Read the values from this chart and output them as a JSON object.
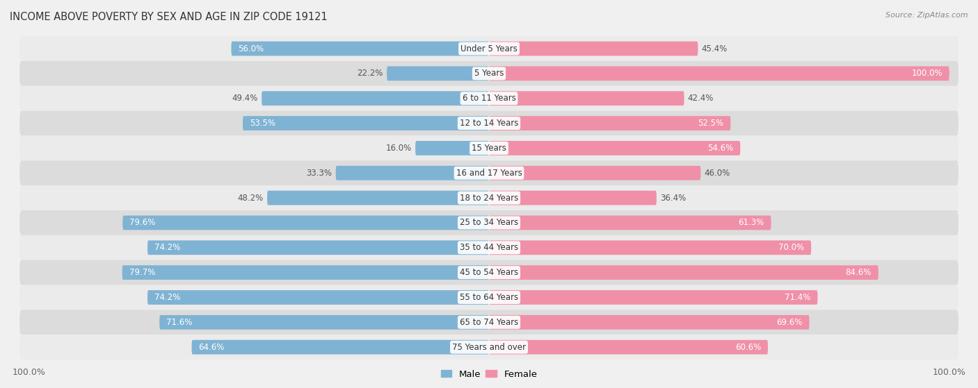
{
  "title": "INCOME ABOVE POVERTY BY SEX AND AGE IN ZIP CODE 19121",
  "source": "Source: ZipAtlas.com",
  "categories": [
    "Under 5 Years",
    "5 Years",
    "6 to 11 Years",
    "12 to 14 Years",
    "15 Years",
    "16 and 17 Years",
    "18 to 24 Years",
    "25 to 34 Years",
    "35 to 44 Years",
    "45 to 54 Years",
    "55 to 64 Years",
    "65 to 74 Years",
    "75 Years and over"
  ],
  "male_values": [
    56.0,
    22.2,
    49.4,
    53.5,
    16.0,
    33.3,
    48.2,
    79.6,
    74.2,
    79.7,
    74.2,
    71.6,
    64.6
  ],
  "female_values": [
    45.4,
    100.0,
    42.4,
    52.5,
    54.6,
    46.0,
    36.4,
    61.3,
    70.0,
    84.6,
    71.4,
    69.6,
    60.6
  ],
  "male_color": "#7fb3d3",
  "female_color": "#f090a8",
  "male_label": "Male",
  "female_label": "Female",
  "row_color_light": "#ebebeb",
  "row_color_dark": "#dcdcdc",
  "bg_color": "#f0f0f0",
  "max_value": 100.0,
  "label_fontsize": 8.5,
  "title_fontsize": 10.5,
  "source_fontsize": 8
}
